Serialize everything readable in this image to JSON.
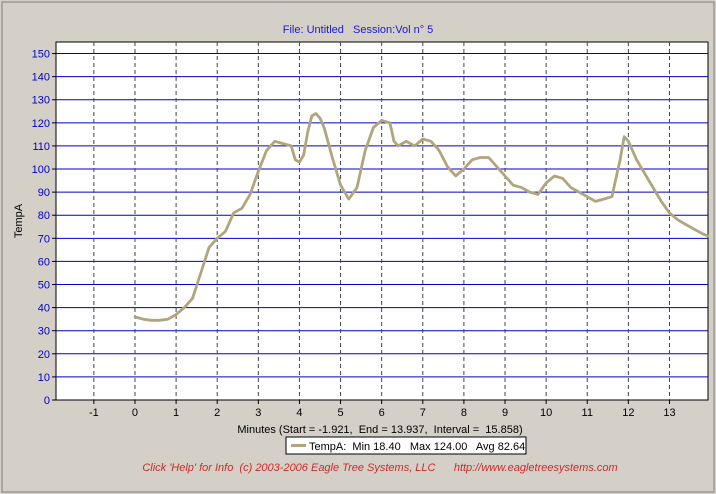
{
  "header": {
    "title": "File: Untitled   Session:Vol n° 5"
  },
  "chart_data": {
    "type": "line",
    "ylabel": "TempA",
    "xlabel": "Minutes (Start = -1.921,  End = 13.937,  Interval =  15.858)",
    "xlim": [
      -1.921,
      13.937
    ],
    "ylim": [
      0,
      155
    ],
    "x_ticks": [
      -1,
      0,
      1,
      2,
      3,
      4,
      5,
      6,
      7,
      8,
      9,
      10,
      11,
      12,
      13
    ],
    "y_ticks": [
      0,
      10,
      20,
      30,
      40,
      50,
      60,
      70,
      80,
      90,
      100,
      110,
      120,
      130,
      140,
      150
    ],
    "grid": true,
    "legend_position": "bottom",
    "series": [
      {
        "name": "TempA",
        "stats": "TempA:  Min 18.40   Max 124.00   Avg 82.64",
        "color": "#b0a57c",
        "x": [
          0.0,
          0.2,
          0.4,
          0.6,
          0.8,
          1.0,
          1.2,
          1.4,
          1.6,
          1.8,
          2.0,
          2.2,
          2.4,
          2.6,
          2.8,
          3.0,
          3.2,
          3.4,
          3.6,
          3.8,
          3.9,
          4.0,
          4.1,
          4.2,
          4.3,
          4.4,
          4.5,
          4.6,
          4.8,
          5.0,
          5.2,
          5.4,
          5.6,
          5.8,
          6.0,
          6.2,
          6.3,
          6.4,
          6.6,
          6.8,
          7.0,
          7.2,
          7.4,
          7.6,
          7.8,
          8.0,
          8.2,
          8.4,
          8.6,
          8.8,
          9.0,
          9.2,
          9.4,
          9.6,
          9.8,
          10.0,
          10.2,
          10.4,
          10.6,
          10.8,
          11.0,
          11.2,
          11.4,
          11.6,
          11.8,
          11.9,
          12.0,
          12.2,
          12.4,
          12.6,
          12.8,
          13.0,
          13.2,
          13.4,
          13.6,
          13.8,
          13.937
        ],
        "values": [
          36,
          35,
          34.5,
          34.5,
          35,
          37,
          40,
          44,
          55,
          66,
          70,
          73,
          81,
          83,
          89,
          99,
          108,
          112,
          111,
          110,
          104,
          103,
          106,
          116,
          123,
          124,
          122,
          118,
          105,
          93,
          87,
          92,
          108,
          118,
          121,
          120,
          112,
          110,
          112,
          110,
          113,
          112,
          108,
          101,
          97,
          100,
          104,
          105,
          105,
          101,
          97,
          93,
          92,
          90,
          89,
          94,
          97,
          96,
          92,
          90,
          88,
          86,
          87,
          88,
          104,
          114,
          112,
          104,
          98,
          92,
          86,
          81,
          78,
          76,
          74,
          72,
          71
        ]
      }
    ]
  },
  "footer": {
    "text": "Click 'Help' for Info  (c) 2003-2006 Eagle Tree Systems, LLC      http://www.eagletreesystems.com"
  }
}
